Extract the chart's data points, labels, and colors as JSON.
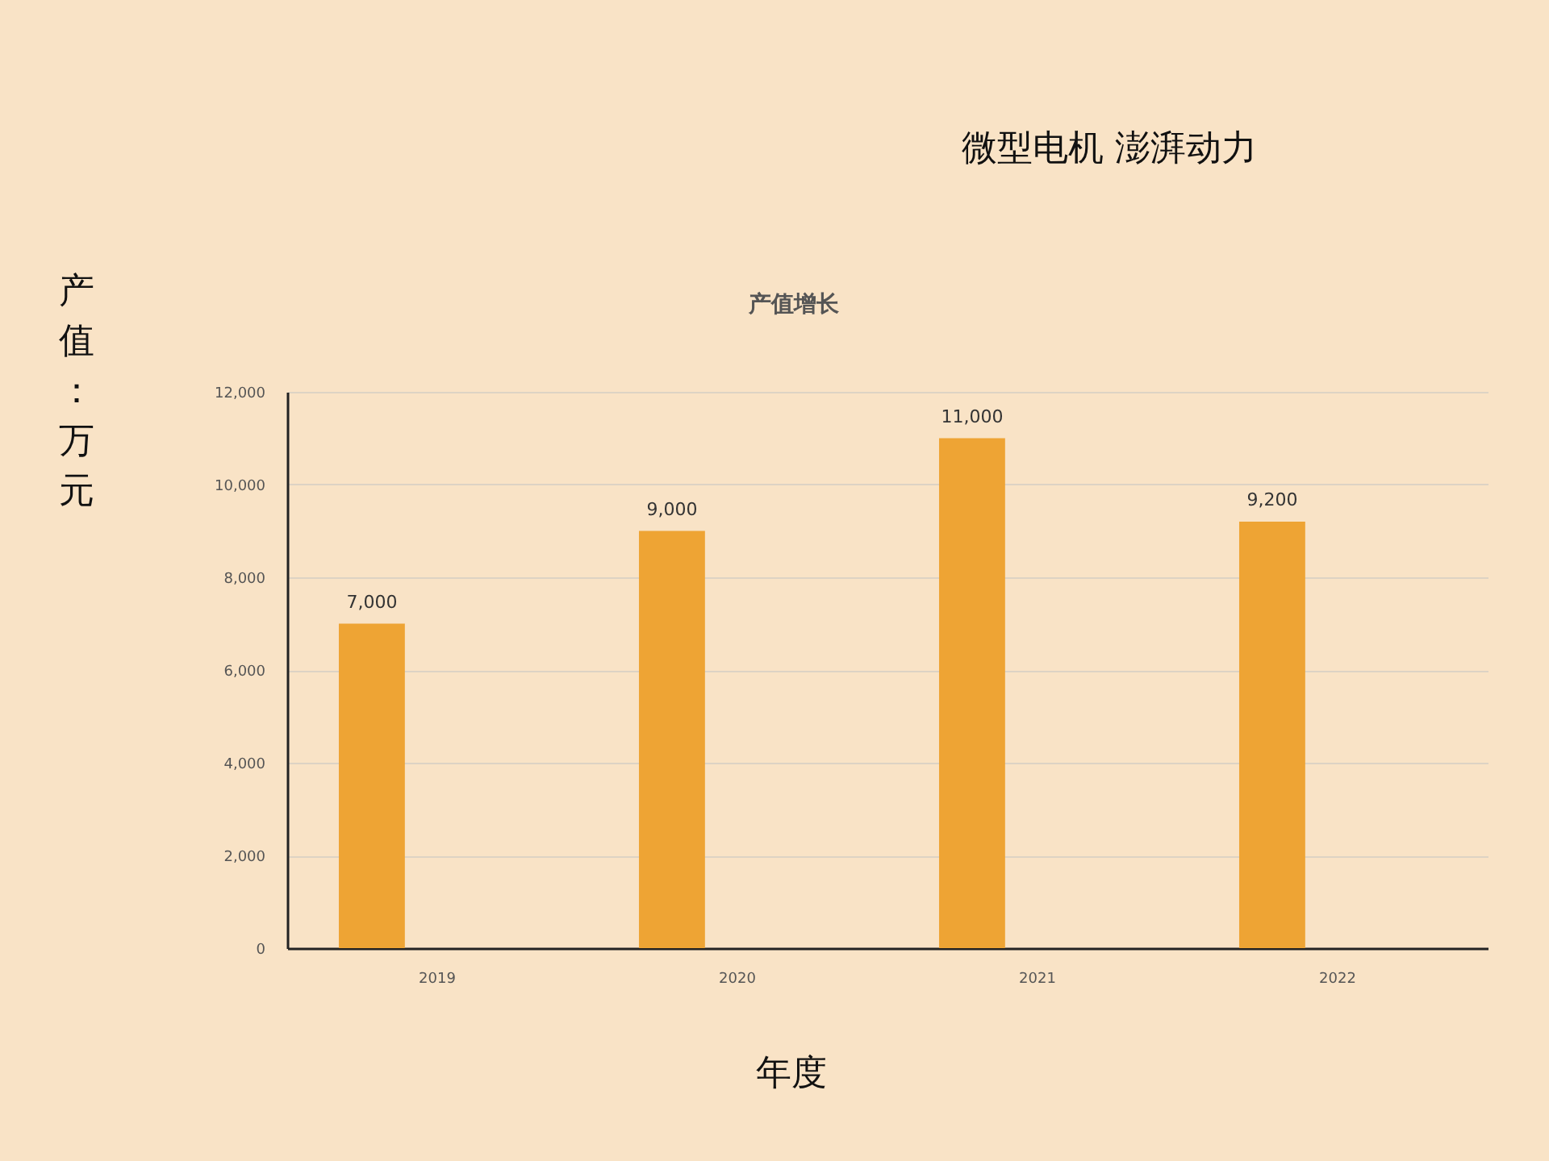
{
  "chart_data": {
    "type": "bar",
    "title": "产值增长",
    "ylabel": "产值：万元",
    "xlabel": "年度",
    "annotations": [
      "微型电机 澎湃动力"
    ],
    "categories": [
      "2019",
      "2020",
      "2021",
      "2022"
    ],
    "values": [
      7000,
      9000,
      11000,
      9200
    ],
    "color": "#eea434",
    "value_labels": [
      "7,000",
      "9,000",
      "11,000",
      "9,200"
    ],
    "ylim": [
      0,
      12000
    ],
    "yticks": [
      0,
      {
        "value": 2000,
        "label": "2,000"
      },
      {
        "value": 4000,
        "label": "4,000"
      },
      {
        "value": 6000,
        "label": "6,000"
      },
      {
        "value": 8000,
        "label": "8,000"
      },
      {
        "value": 10000,
        "label": "10,000"
      },
      {
        "value": 12000,
        "label": "12,000"
      }
    ],
    "grid": "y"
  }
}
